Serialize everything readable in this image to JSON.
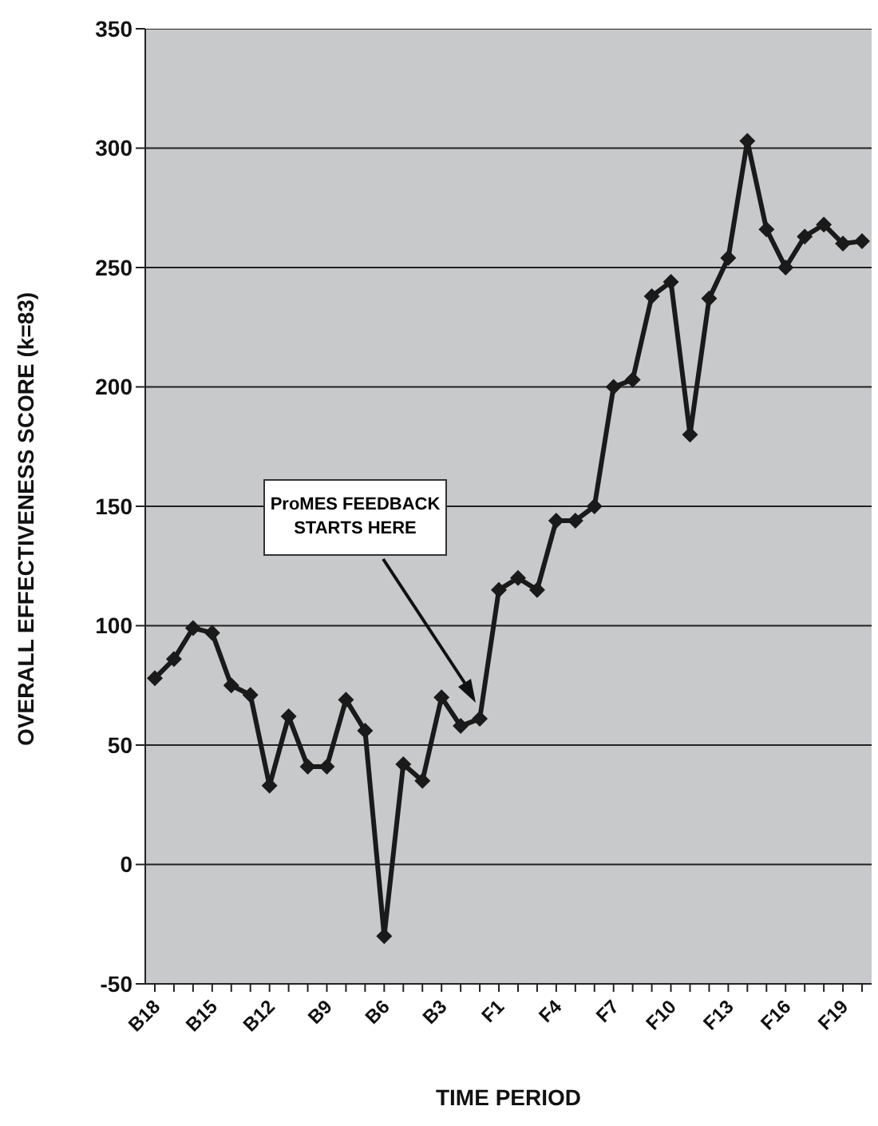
{
  "chart_data": {
    "type": "line",
    "xlabel": "TIME PERIOD",
    "ylabel": "OVERALL EFFECTIVENESS SCORE (k=83)",
    "categories": [
      "B18",
      null,
      null,
      "B15",
      null,
      null,
      "B12",
      null,
      null,
      "B9",
      null,
      null,
      "B6",
      null,
      null,
      "B3",
      null,
      null,
      "F1",
      null,
      null,
      "F4",
      null,
      null,
      "F7",
      null,
      null,
      "F10",
      null,
      null,
      "F13",
      null,
      null,
      "F16",
      null,
      null,
      "F19",
      null
    ],
    "series": [
      {
        "color": "#1a1a1a",
        "values": [
          78,
          86,
          99,
          97,
          75,
          71,
          33,
          62,
          41,
          41,
          69,
          56,
          -30,
          42,
          35,
          70,
          58,
          61,
          115,
          120,
          115,
          144,
          144,
          150,
          200,
          203,
          238,
          244,
          180,
          237,
          254,
          303,
          266,
          250,
          263,
          268,
          260,
          261
        ]
      }
    ],
    "ylim": [
      -50,
      350
    ],
    "yticks": [
      -50,
      0,
      50,
      100,
      150,
      200,
      250,
      300,
      350
    ],
    "grid": "y",
    "marker": "diamond",
    "line_style": "solid",
    "annotations": [
      "ProMES FEEDBACK\nSTARTS HERE"
    ]
  }
}
